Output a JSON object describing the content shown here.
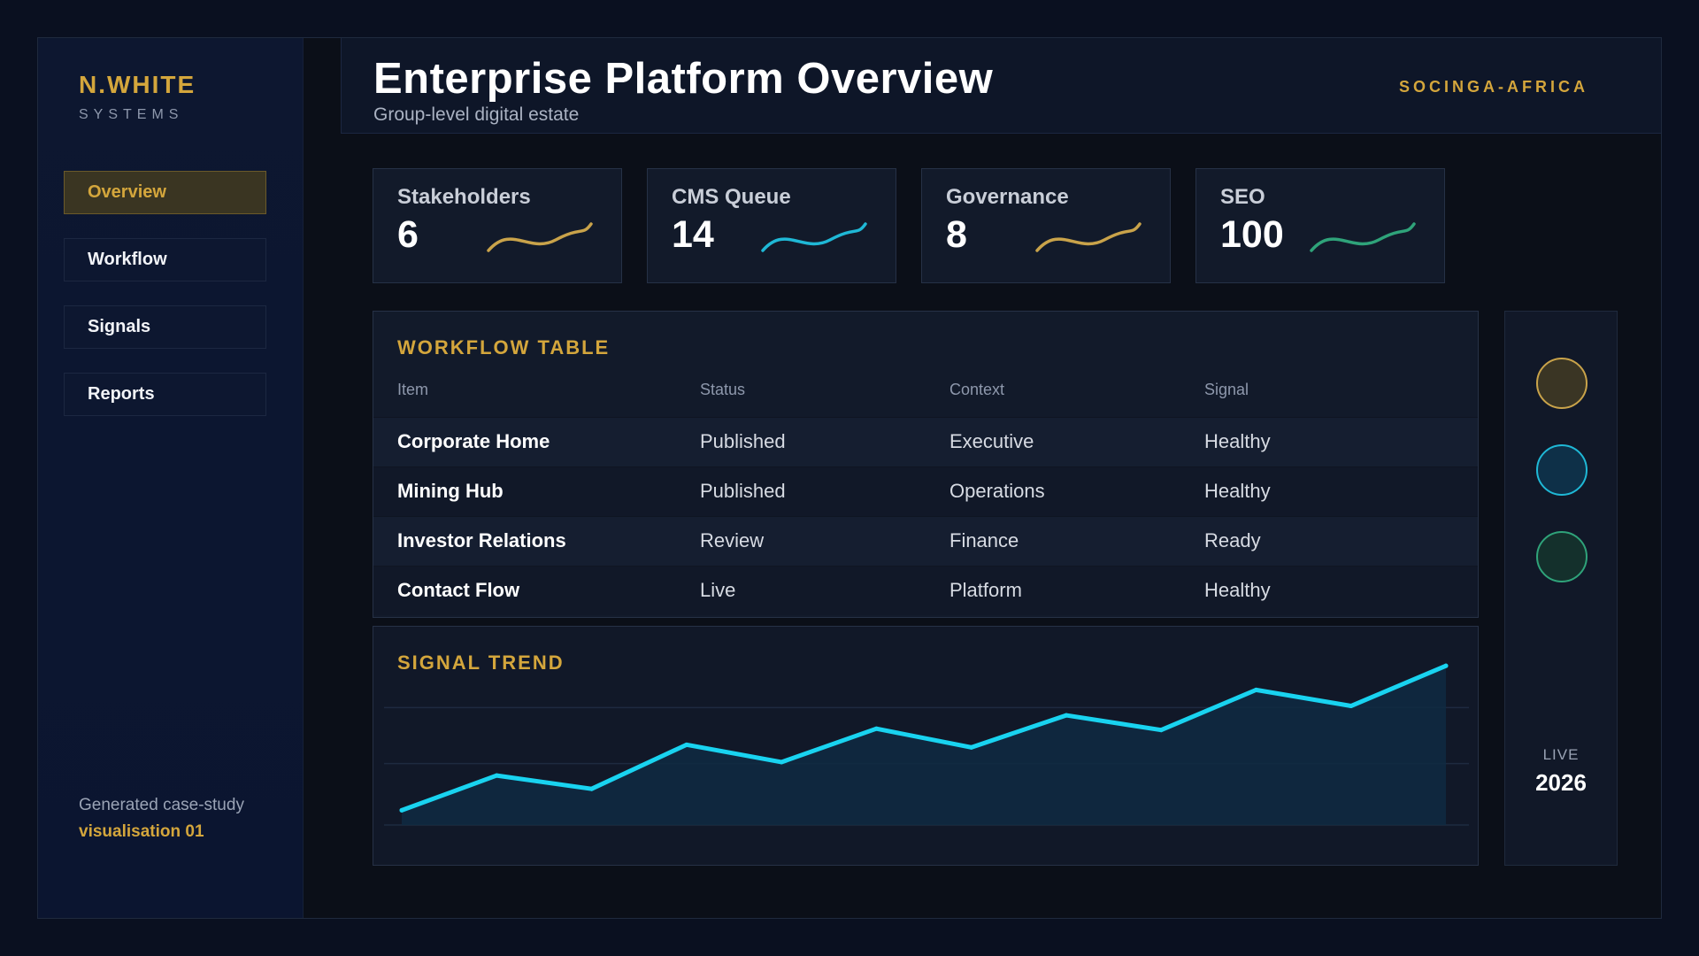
{
  "sidebar": {
    "brand_title": "N.WHITE",
    "brand_sub": "SYSTEMS",
    "items": [
      {
        "label": "Overview",
        "active": true
      },
      {
        "label": "Workflow",
        "active": false
      },
      {
        "label": "Signals",
        "active": false
      },
      {
        "label": "Reports",
        "active": false
      }
    ],
    "footer_line1": "Generated case-study",
    "footer_line2": "visualisation 01"
  },
  "header": {
    "title": "Enterprise Platform Overview",
    "subtitle": "Group-level digital estate",
    "org": "SOCINGA-AFRICA"
  },
  "cards": [
    {
      "label": "Stakeholders",
      "value": "6",
      "color": "#c9a34a"
    },
    {
      "label": "CMS Queue",
      "value": "14",
      "color": "#1fb8d6"
    },
    {
      "label": "Governance",
      "value": "8",
      "color": "#c9a34a"
    },
    {
      "label": "SEO",
      "value": "100",
      "color": "#2fa37a"
    }
  ],
  "workflow": {
    "title": "WORKFLOW TABLE",
    "columns": [
      "Item",
      "Status",
      "Context",
      "Signal"
    ],
    "rows": [
      [
        "Corporate Home",
        "Published",
        "Executive",
        "Healthy"
      ],
      [
        "Mining Hub",
        "Published",
        "Operations",
        "Healthy"
      ],
      [
        "Investor Relations",
        "Review",
        "Finance",
        "Ready"
      ],
      [
        "Contact Flow",
        "Live",
        "Platform",
        "Healthy"
      ]
    ]
  },
  "trend": {
    "title": "SIGNAL TREND",
    "line_color": "#19d3f0"
  },
  "chart_data": {
    "type": "area",
    "title": "SIGNAL TREND",
    "y": [
      11,
      37,
      27,
      60,
      47,
      72,
      58,
      82,
      71,
      101,
      89,
      119
    ],
    "ylim": [
      0,
      135
    ],
    "grid": true
  },
  "rail": {
    "dots": [
      {
        "fill": "#3a3524",
        "stroke": "#c9a34a",
        "icon": "gold-status-dot"
      },
      {
        "fill": "#0e3048",
        "stroke": "#1fb8d6",
        "icon": "cyan-status-dot"
      },
      {
        "fill": "#14302c",
        "stroke": "#2fa37a",
        "icon": "green-status-dot"
      }
    ],
    "live_label": "LIVE",
    "year": "2026"
  }
}
